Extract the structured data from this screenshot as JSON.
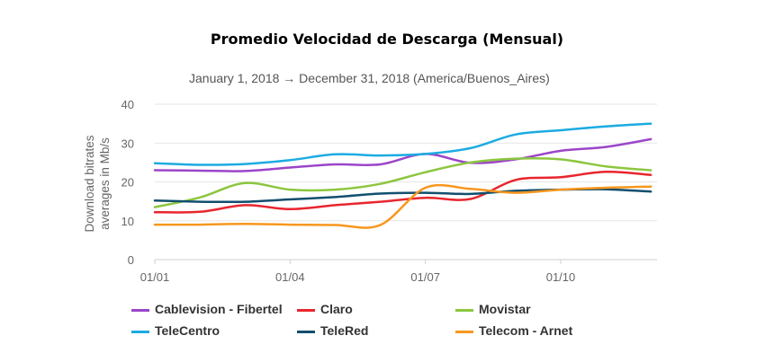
{
  "title": "Promedio Velocidad de Descarga (Mensual)",
  "subtitle": "January 1, 2018 → December 31, 2018 (America/Buenos_Aires)",
  "chart_data": {
    "type": "line",
    "title": "Promedio Velocidad de Descarga (Mensual)",
    "subtitle": "January 1, 2018 → December 31, 2018 (America/Buenos_Aires)",
    "xlabel": "",
    "ylabel": "Download bitrates averages in Mb/s",
    "x": [
      "01/01",
      "01/02",
      "01/03",
      "01/04",
      "01/05",
      "01/06",
      "01/07",
      "01/08",
      "01/09",
      "01/10",
      "01/11",
      "01/12"
    ],
    "x_ticks": [
      "01/01",
      "01/04",
      "01/07",
      "01/10"
    ],
    "ylim": [
      0,
      40
    ],
    "y_ticks": [
      0,
      10,
      20,
      30,
      40
    ],
    "grid": true,
    "legend_position": "bottom",
    "series": [
      {
        "name": "Cablevision - Fibertel",
        "color": "#9b45c9",
        "values": [
          23.0,
          22.9,
          22.8,
          23.7,
          24.5,
          24.5,
          27.2,
          24.9,
          25.8,
          28.0,
          29.0,
          31.0
        ]
      },
      {
        "name": "Claro",
        "color": "#e8262e",
        "values": [
          12.2,
          12.3,
          14.0,
          13.0,
          14.0,
          14.9,
          15.9,
          15.6,
          20.5,
          21.2,
          22.6,
          21.8
        ]
      },
      {
        "name": "Movistar",
        "color": "#8cc63f",
        "values": [
          13.5,
          16.0,
          19.7,
          18.0,
          18.0,
          19.5,
          22.5,
          25.0,
          26.0,
          25.8,
          24.0,
          23.0
        ]
      },
      {
        "name": "TeleCentro",
        "color": "#1cabe2",
        "values": [
          24.8,
          24.4,
          24.6,
          25.6,
          27.1,
          26.8,
          27.2,
          28.7,
          32.2,
          33.3,
          34.3,
          35.0
        ]
      },
      {
        "name": "TeleRed",
        "color": "#124e6e",
        "values": [
          15.2,
          14.9,
          14.9,
          15.5,
          16.1,
          17.0,
          17.2,
          16.9,
          17.7,
          18.0,
          18.1,
          17.5
        ]
      },
      {
        "name": "Telecom - Arnet",
        "color": "#f7971e",
        "values": [
          9.0,
          9.0,
          9.2,
          9.0,
          8.9,
          8.9,
          18.5,
          18.2,
          17.2,
          18.0,
          18.5,
          18.8
        ]
      }
    ]
  }
}
